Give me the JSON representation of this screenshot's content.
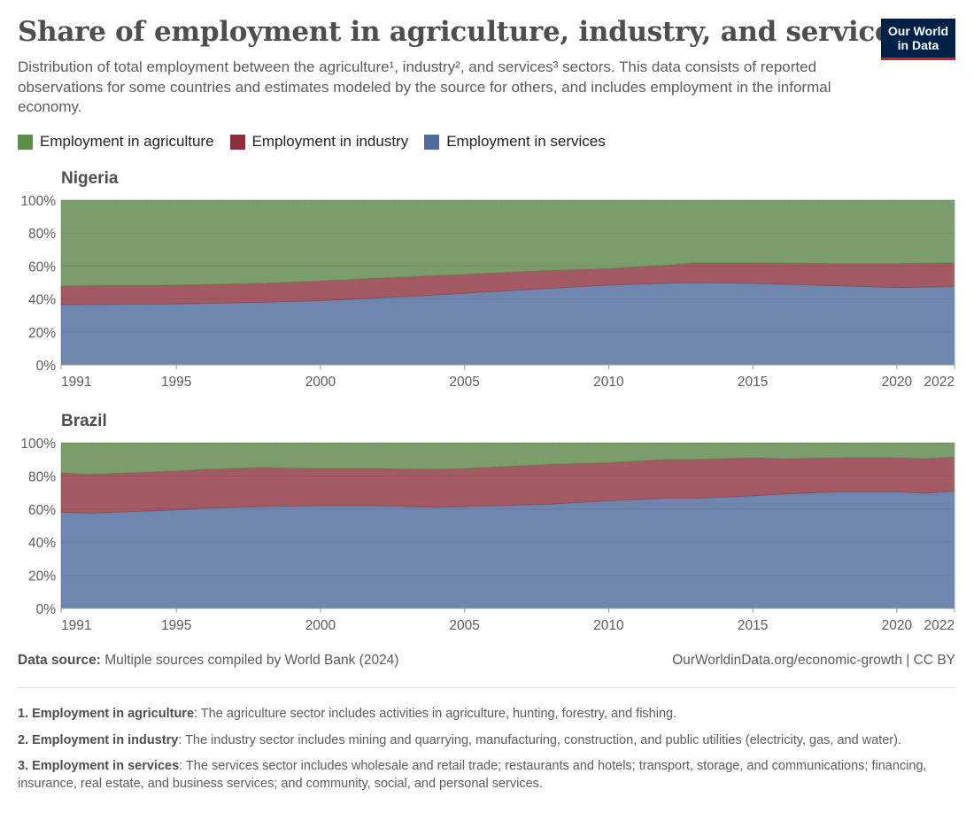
{
  "header": {
    "title": "Share of employment in agriculture, industry, and services",
    "subtitle": "Distribution of total employment between the agriculture¹, industry², and services³ sectors. This data consists of reported observations for some countries and estimates modeled by the source for others, and includes employment in the informal economy.",
    "logo_line1": "Our World",
    "logo_line2": "in Data"
  },
  "colors": {
    "agriculture": "#5b8c4a",
    "industry": "#8c2f3c",
    "services": "#4c6a9c",
    "agriculture_area": "#7a9d6b",
    "industry_area": "#a35a62",
    "services_area": "#6f87ae",
    "logo_bg": "#002147",
    "logo_accent": "#ce261e"
  },
  "legend": [
    {
      "label": "Employment in agriculture",
      "key": "agriculture"
    },
    {
      "label": "Employment in industry",
      "key": "industry"
    },
    {
      "label": "Employment in services",
      "key": "services"
    }
  ],
  "chart_data": [
    {
      "type": "area",
      "stacked": true,
      "title": "Nigeria",
      "xlabel": "",
      "ylabel": "",
      "ylim": [
        0,
        100
      ],
      "xlim": [
        1991,
        2022
      ],
      "y_ticks": [
        "0%",
        "20%",
        "40%",
        "60%",
        "80%",
        "100%"
      ],
      "y_tick_values": [
        0,
        20,
        40,
        60,
        80,
        100
      ],
      "x_ticks": [
        "1991",
        "1995",
        "2000",
        "2005",
        "2010",
        "2015",
        "2020",
        "2022"
      ],
      "x_tick_values": [
        1991,
        1995,
        2000,
        2005,
        2010,
        2015,
        2020,
        2022
      ],
      "grid": true,
      "x": [
        1991,
        1995,
        1998,
        2000,
        2003,
        2005,
        2008,
        2010,
        2012,
        2013,
        2015,
        2018,
        2020,
        2022
      ],
      "series": [
        {
          "name": "Employment in services",
          "key": "services",
          "values": [
            36.5,
            37.0,
            38.0,
            39.0,
            41.5,
            43.5,
            46.5,
            48.5,
            49.5,
            50.0,
            49.5,
            48.0,
            47.0,
            47.5
          ]
        },
        {
          "name": "Employment in industry",
          "key": "industry",
          "values": [
            11.5,
            11.5,
            11.5,
            12.0,
            12.0,
            11.5,
            11.0,
            10.0,
            11.0,
            12.0,
            12.5,
            13.5,
            14.5,
            14.5
          ]
        },
        {
          "name": "Employment in agriculture",
          "key": "agriculture",
          "values": [
            52.0,
            51.5,
            50.5,
            49.0,
            46.5,
            45.0,
            42.5,
            41.5,
            39.5,
            38.0,
            38.0,
            38.5,
            38.5,
            38.0
          ]
        }
      ]
    },
    {
      "type": "area",
      "stacked": true,
      "title": "Brazil",
      "xlabel": "",
      "ylabel": "",
      "ylim": [
        0,
        100
      ],
      "xlim": [
        1991,
        2022
      ],
      "y_ticks": [
        "0%",
        "20%",
        "40%",
        "60%",
        "80%",
        "100%"
      ],
      "y_tick_values": [
        0,
        20,
        40,
        60,
        80,
        100
      ],
      "x_ticks": [
        "1991",
        "1995",
        "2000",
        "2005",
        "2010",
        "2015",
        "2020",
        "2022"
      ],
      "x_tick_values": [
        1991,
        1995,
        2000,
        2005,
        2010,
        2015,
        2020,
        2022
      ],
      "grid": true,
      "x": [
        1991,
        1992,
        1995,
        1996,
        1998,
        2000,
        2002,
        2004,
        2005,
        2008,
        2010,
        2012,
        2013,
        2015,
        2016,
        2018,
        2020,
        2021,
        2022
      ],
      "series": [
        {
          "name": "Employment in services",
          "key": "services",
          "values": [
            58.0,
            57.5,
            59.5,
            60.5,
            61.5,
            62.0,
            62.0,
            61.0,
            61.5,
            63.0,
            65.0,
            66.5,
            66.5,
            68.0,
            69.0,
            70.5,
            70.5,
            69.5,
            71.0
          ]
        },
        {
          "name": "Employment in industry",
          "key": "industry",
          "values": [
            24.0,
            23.5,
            23.5,
            23.5,
            23.5,
            22.5,
            22.5,
            23.0,
            23.0,
            24.0,
            23.0,
            23.5,
            23.5,
            23.0,
            21.5,
            20.5,
            20.5,
            21.0,
            20.5
          ]
        },
        {
          "name": "Employment in agriculture",
          "key": "agriculture",
          "values": [
            18.0,
            19.0,
            17.0,
            16.0,
            15.0,
            15.5,
            15.5,
            16.0,
            15.5,
            13.0,
            12.0,
            10.0,
            10.0,
            9.0,
            9.5,
            9.0,
            9.0,
            9.5,
            8.5
          ]
        }
      ]
    }
  ],
  "footer": {
    "source_label": "Data source:",
    "source_text": " Multiple sources compiled by World Bank (2024)",
    "link_text": "OurWorldinData.org/economic-growth | CC BY"
  },
  "notes": [
    {
      "label": "1. Employment in agriculture",
      "text": ": The agriculture sector includes activities in agriculture, hunting, forestry, and fishing."
    },
    {
      "label": "2. Employment in industry",
      "text": ": The industry sector includes mining and quarrying, manufacturing, construction, and public utilities (electricity, gas, and water)."
    },
    {
      "label": "3. Employment in services",
      "text": ": The services sector includes wholesale and retail trade; restaurants and hotels; transport, storage, and communications; financing, insurance, real estate, and business services; and community, social, and personal services."
    }
  ]
}
